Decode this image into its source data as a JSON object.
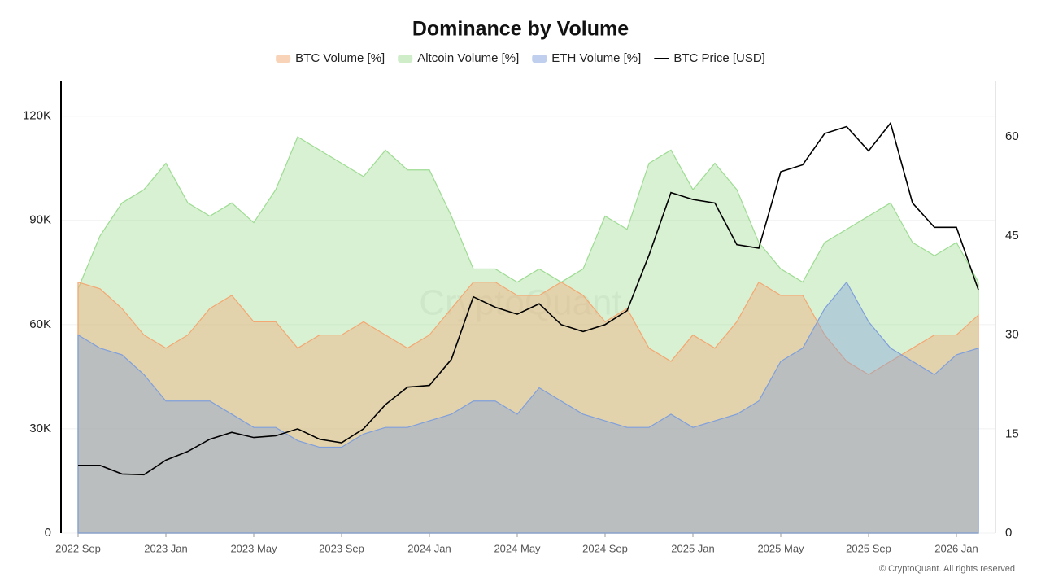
{
  "chart_data": {
    "type": "area-line",
    "title": "Dominance by Volume",
    "watermark": "CryptoQuant",
    "footer": "© CryptoQuant. All rights reserved",
    "x": [
      "2022-09",
      "2022-10",
      "2022-11",
      "2022-12",
      "2023-01",
      "2023-02",
      "2023-03",
      "2023-04",
      "2023-05",
      "2023-06",
      "2023-07",
      "2023-08",
      "2023-09",
      "2023-10",
      "2023-11",
      "2023-12",
      "2024-01",
      "2024-02",
      "2024-03",
      "2024-04",
      "2024-05",
      "2024-06",
      "2024-07",
      "2024-08",
      "2024-09",
      "2024-10",
      "2024-11",
      "2024-12",
      "2025-01",
      "2025-02",
      "2025-03",
      "2025-04",
      "2025-05",
      "2025-06",
      "2025-07",
      "2025-08",
      "2025-09",
      "2025-10",
      "2025-11",
      "2025-12",
      "2026-01",
      "2026-02"
    ],
    "xticks": [
      {
        "value": "2022-09",
        "label": "2022 Sep"
      },
      {
        "value": "2023-01",
        "label": "2023 Jan"
      },
      {
        "value": "2023-05",
        "label": "2023 May"
      },
      {
        "value": "2023-09",
        "label": "2023 Sep"
      },
      {
        "value": "2024-01",
        "label": "2024 Jan"
      },
      {
        "value": "2024-05",
        "label": "2024 May"
      },
      {
        "value": "2024-09",
        "label": "2024 Sep"
      },
      {
        "value": "2025-01",
        "label": "2025 Jan"
      },
      {
        "value": "2025-05",
        "label": "2025 May"
      },
      {
        "value": "2025-09",
        "label": "2025 Sep"
      },
      {
        "value": "2026-01",
        "label": "2026 Jan"
      }
    ],
    "ylim": [
      0,
      130000
    ],
    "yticks": [
      0,
      {
        "value": 30000,
        "label": "30K"
      },
      {
        "value": 60000,
        "label": "60K"
      },
      {
        "value": 90000,
        "label": "90K"
      },
      {
        "value": 120000,
        "label": "120K"
      }
    ],
    "y2lim": [
      0,
      68.4
    ],
    "y2ticks": [
      0,
      15,
      30,
      45,
      60
    ],
    "grid": true,
    "legend": "top",
    "series": [
      {
        "name": "BTC Volume [%]",
        "kind": "area",
        "axis": "y2",
        "color": "#f4a772",
        "values": [
          38,
          37,
          34,
          30,
          28,
          30,
          34,
          36,
          32,
          32,
          28,
          30,
          30,
          32,
          30,
          28,
          30,
          34,
          38,
          38,
          36,
          36,
          38,
          36,
          32,
          34,
          28,
          26,
          30,
          28,
          32,
          38,
          36,
          36,
          30,
          26,
          24,
          26,
          28,
          30,
          30,
          33
        ]
      },
      {
        "name": "Altcoin Volume [%]",
        "kind": "area",
        "axis": "y2",
        "color": "#9ddc92",
        "values": [
          37,
          45,
          50,
          52,
          56,
          50,
          48,
          50,
          47,
          52,
          60,
          58,
          56,
          54,
          58,
          55,
          55,
          48,
          40,
          40,
          38,
          40,
          38,
          40,
          48,
          46,
          56,
          58,
          52,
          56,
          52,
          44,
          40,
          38,
          44,
          46,
          48,
          50,
          44,
          42,
          44,
          38
        ]
      },
      {
        "name": "ETH Volume [%]",
        "kind": "area",
        "axis": "y2",
        "color": "#7f9fdc",
        "values": [
          30,
          28,
          27,
          24,
          20,
          20,
          20,
          18,
          16,
          16,
          14,
          13,
          13,
          15,
          16,
          16,
          17,
          18,
          20,
          20,
          18,
          22,
          20,
          18,
          17,
          16,
          16,
          18,
          16,
          17,
          18,
          20,
          26,
          28,
          34,
          38,
          32,
          28,
          26,
          24,
          27,
          28
        ]
      },
      {
        "name": "BTC Price [USD]",
        "kind": "line",
        "axis": "y",
        "color": "#000000",
        "values": [
          19500,
          19500,
          17000,
          16800,
          21000,
          23500,
          27000,
          29000,
          27500,
          28000,
          30000,
          27000,
          26000,
          30000,
          37000,
          42000,
          42500,
          50000,
          68000,
          65000,
          63000,
          66000,
          60000,
          58000,
          60000,
          64000,
          80000,
          98000,
          96000,
          95000,
          83000,
          82000,
          104000,
          106000,
          115000,
          117000,
          110000,
          118000,
          95000,
          88000,
          88000,
          70000
        ]
      }
    ]
  }
}
